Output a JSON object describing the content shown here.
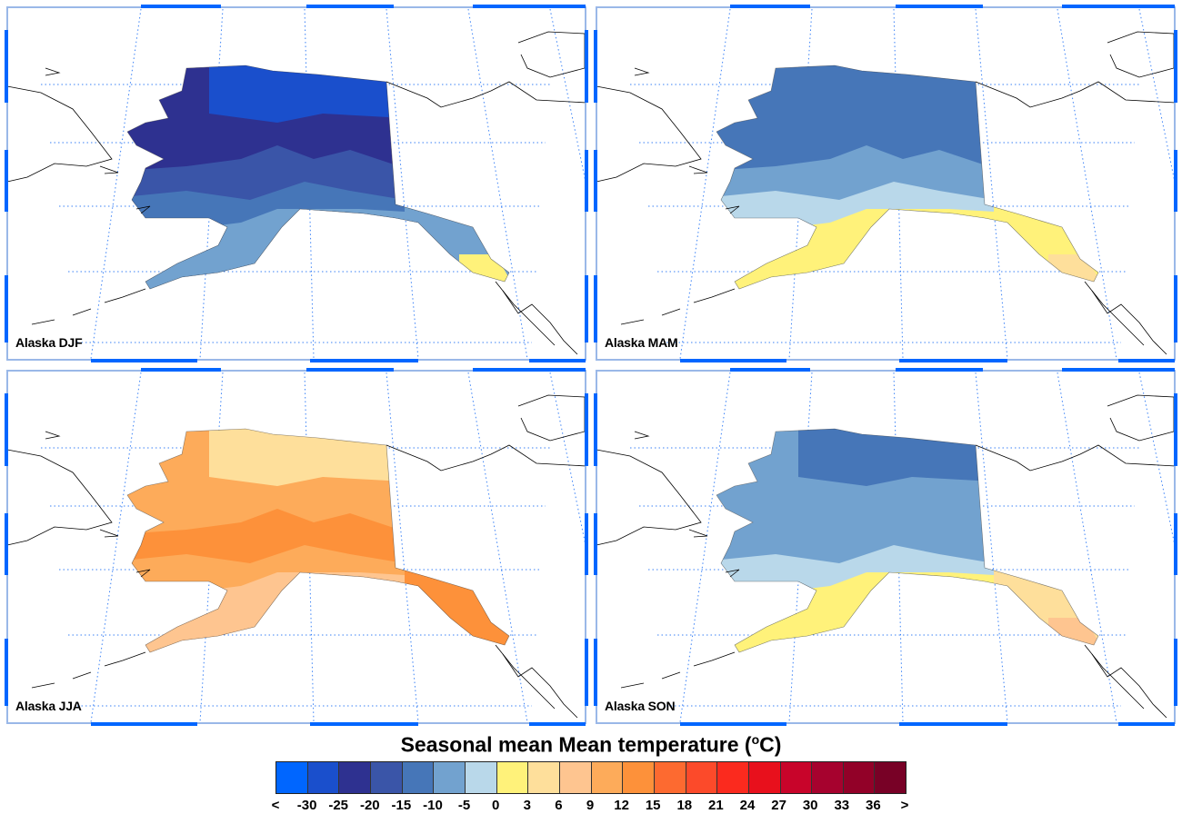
{
  "figure": {
    "title_main": "Seasonal mean Mean temperature (",
    "title_unit_sup": "o",
    "title_unit": "C)"
  },
  "panels": [
    {
      "label": "Alaska DJF",
      "colors": {
        "base": "#2e3190",
        "north": "#1a4fcc",
        "mid": "#3a55a8",
        "low": "#4676b8",
        "coast": "#72a2cf",
        "pan": "#72a2cf",
        "spot": "#fff27a"
      }
    },
    {
      "label": "Alaska MAM",
      "colors": {
        "base": "#4676b8",
        "north": "#4676b8",
        "mid": "#72a2cf",
        "low": "#b9d8ea",
        "coast": "#fff27a",
        "pan": "#fff27a",
        "spot": "#fedf9b"
      }
    },
    {
      "label": "Alaska JJA",
      "colors": {
        "base": "#fdab5a",
        "north": "#fedf9b",
        "mid": "#fd913a",
        "low": "#fdab5a",
        "coast": "#fec590",
        "pan": "#fd913a",
        "spot": "#fd913a"
      }
    },
    {
      "label": "Alaska SON",
      "colors": {
        "base": "#72a2cf",
        "north": "#4676b8",
        "mid": "#72a2cf",
        "low": "#b9d8ea",
        "coast": "#fff27a",
        "pan": "#fedf9b",
        "spot": "#fec590"
      }
    }
  ],
  "colorbar": {
    "colors": [
      "#0066ff",
      "#1a4fcc",
      "#2e3190",
      "#3a55a8",
      "#4676b8",
      "#72a2cf",
      "#b9d8ea",
      "#fff27a",
      "#fedf9b",
      "#fec590",
      "#fdab5a",
      "#fd913a",
      "#fd6a30",
      "#fc4a2a",
      "#fb2a1e",
      "#e8101c",
      "#c8042a",
      "#a6022e",
      "#920128",
      "#780126"
    ],
    "labels": [
      "<",
      "-30",
      "-25",
      "-20",
      "-15",
      "-10",
      "-5",
      "0",
      "3",
      "6",
      "9",
      "12",
      "15",
      "18",
      "21",
      "24",
      "27",
      "30",
      "33",
      "36",
      ">"
    ]
  },
  "style": {
    "frame_blue": "#0066ff",
    "grid_blue": "#3b82f6"
  }
}
